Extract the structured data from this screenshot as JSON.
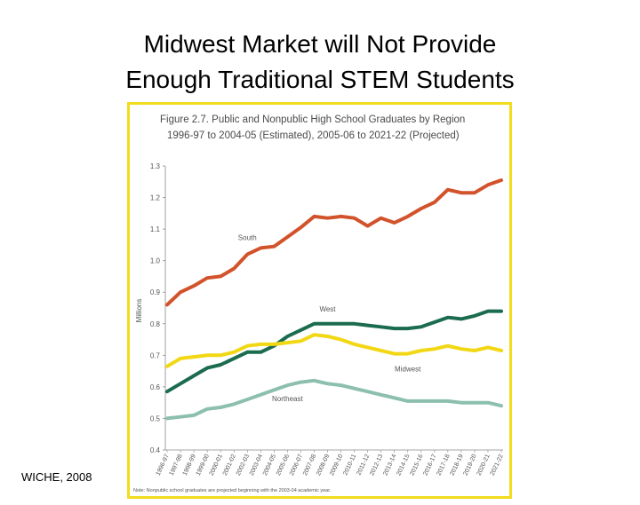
{
  "slide": {
    "title_line1": "Midwest Market will Not Provide",
    "title_line2": "Enough Traditional STEM Students",
    "source": "WICHE, 2008"
  },
  "chart_data": {
    "type": "line",
    "title": "Figure 2.7.  Public and Nonpublic High School Graduates by Region",
    "subtitle": "1996-97 to 2004-05 (Estimated), 2005-06 to 2021-22 (Projected)",
    "ylabel": "Millions",
    "xlabel": "",
    "ylim": [
      0.4,
      1.3
    ],
    "yticks": [
      "0.4",
      "0.5",
      "0.6",
      "0.7",
      "0.8",
      "0.9",
      "1.0",
      "1.1",
      "1.2",
      "1.3"
    ],
    "categories": [
      "1996-97",
      "1997-98",
      "1998-99",
      "1999-00",
      "2000-01",
      "2001-02",
      "2002-03",
      "2003-04",
      "2004-05",
      "2005-06",
      "2006-07",
      "2007-08",
      "2008-09",
      "2009-10",
      "2010-11",
      "2011-12",
      "2012-13",
      "2013-14",
      "2014-15",
      "2015-16",
      "2016-17",
      "2017-18",
      "2018-19",
      "2019-20",
      "2020-21",
      "2021-22"
    ],
    "series": [
      {
        "name": "South",
        "color": "#d2532b",
        "values": [
          0.86,
          0.9,
          0.92,
          0.945,
          0.95,
          0.975,
          1.02,
          1.04,
          1.045,
          1.075,
          1.105,
          1.14,
          1.135,
          1.14,
          1.135,
          1.11,
          1.135,
          1.12,
          1.14,
          1.165,
          1.185,
          1.225,
          1.215,
          1.215,
          1.24,
          1.255
        ]
      },
      {
        "name": "West",
        "color": "#1b6b4e",
        "values": [
          0.585,
          0.61,
          0.635,
          0.66,
          0.67,
          0.69,
          0.71,
          0.71,
          0.73,
          0.76,
          0.78,
          0.8,
          0.8,
          0.8,
          0.8,
          0.795,
          0.79,
          0.785,
          0.785,
          0.79,
          0.805,
          0.82,
          0.815,
          0.825,
          0.84,
          0.84
        ]
      },
      {
        "name": "Midwest",
        "color": "#f2d714",
        "values": [
          0.665,
          0.69,
          0.695,
          0.7,
          0.7,
          0.71,
          0.73,
          0.735,
          0.735,
          0.74,
          0.745,
          0.765,
          0.76,
          0.75,
          0.735,
          0.725,
          0.715,
          0.705,
          0.705,
          0.715,
          0.72,
          0.73,
          0.72,
          0.715,
          0.725,
          0.715
        ]
      },
      {
        "name": "Northeast",
        "color": "#8cbfae",
        "values": [
          0.5,
          0.505,
          0.51,
          0.53,
          0.535,
          0.545,
          0.56,
          0.575,
          0.59,
          0.605,
          0.615,
          0.62,
          0.61,
          0.605,
          0.595,
          0.585,
          0.575,
          0.565,
          0.555,
          0.555,
          0.555,
          0.555,
          0.55,
          0.55,
          0.55,
          0.54
        ]
      }
    ],
    "note": "Note: Nonpublic school graduates are projected beginning with the 2003-04 academic year."
  }
}
